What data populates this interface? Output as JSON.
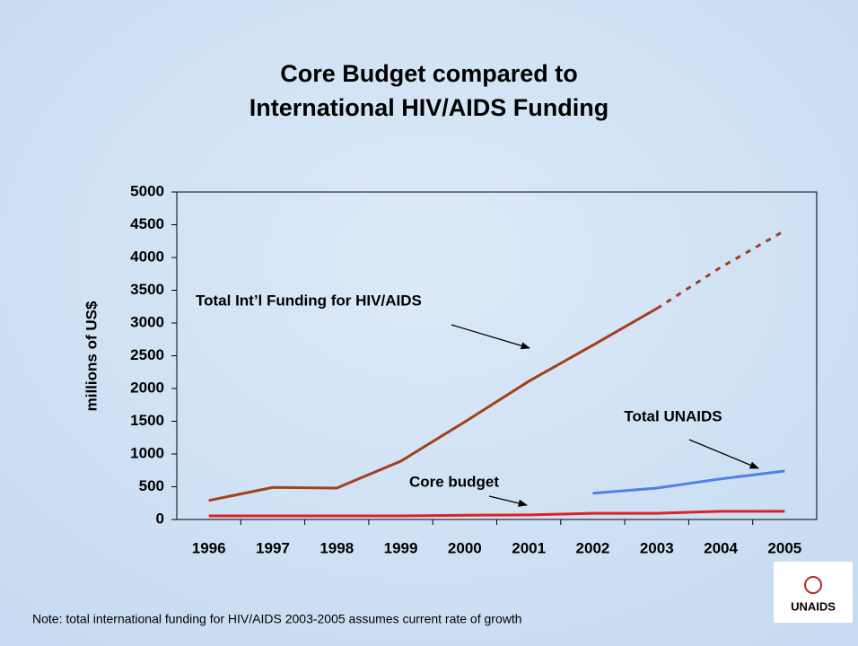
{
  "chart_data": {
    "type": "line",
    "title": [
      "Core Budget compared to",
      "International HIV/AIDS Funding"
    ],
    "y_label": "millions of US$",
    "categories": [
      "1996",
      "1997",
      "1998",
      "1999",
      "2000",
      "2001",
      "2002",
      "2003",
      "2004",
      "2005"
    ],
    "series": [
      {
        "name": "Total Int’l Funding for HIV/AIDS",
        "color": "#a2401c",
        "dash_from": "2003",
        "values": [
          290,
          490,
          480,
          890,
          1490,
          2110,
          2660,
          3220,
          3850,
          4410
        ]
      },
      {
        "name": "Total UNAIDS",
        "color": "#4f80ea",
        "values": [
          null,
          null,
          null,
          null,
          null,
          null,
          400,
          480,
          620,
          740
        ]
      },
      {
        "name": "Core budget",
        "color": "#e02020",
        "values": [
          55,
          55,
          55,
          55,
          65,
          70,
          95,
          95,
          125,
          125
        ]
      }
    ],
    "ylim": [
      0,
      5000
    ],
    "yticks": [
      0,
      500,
      1000,
      1500,
      2000,
      2500,
      3000,
      3500,
      4000,
      4500,
      5000
    ],
    "grid": false,
    "note": "Note: total international funding for HIV/AIDS 2003-2005 assumes current rate of growth",
    "logo": "UNAIDS"
  }
}
